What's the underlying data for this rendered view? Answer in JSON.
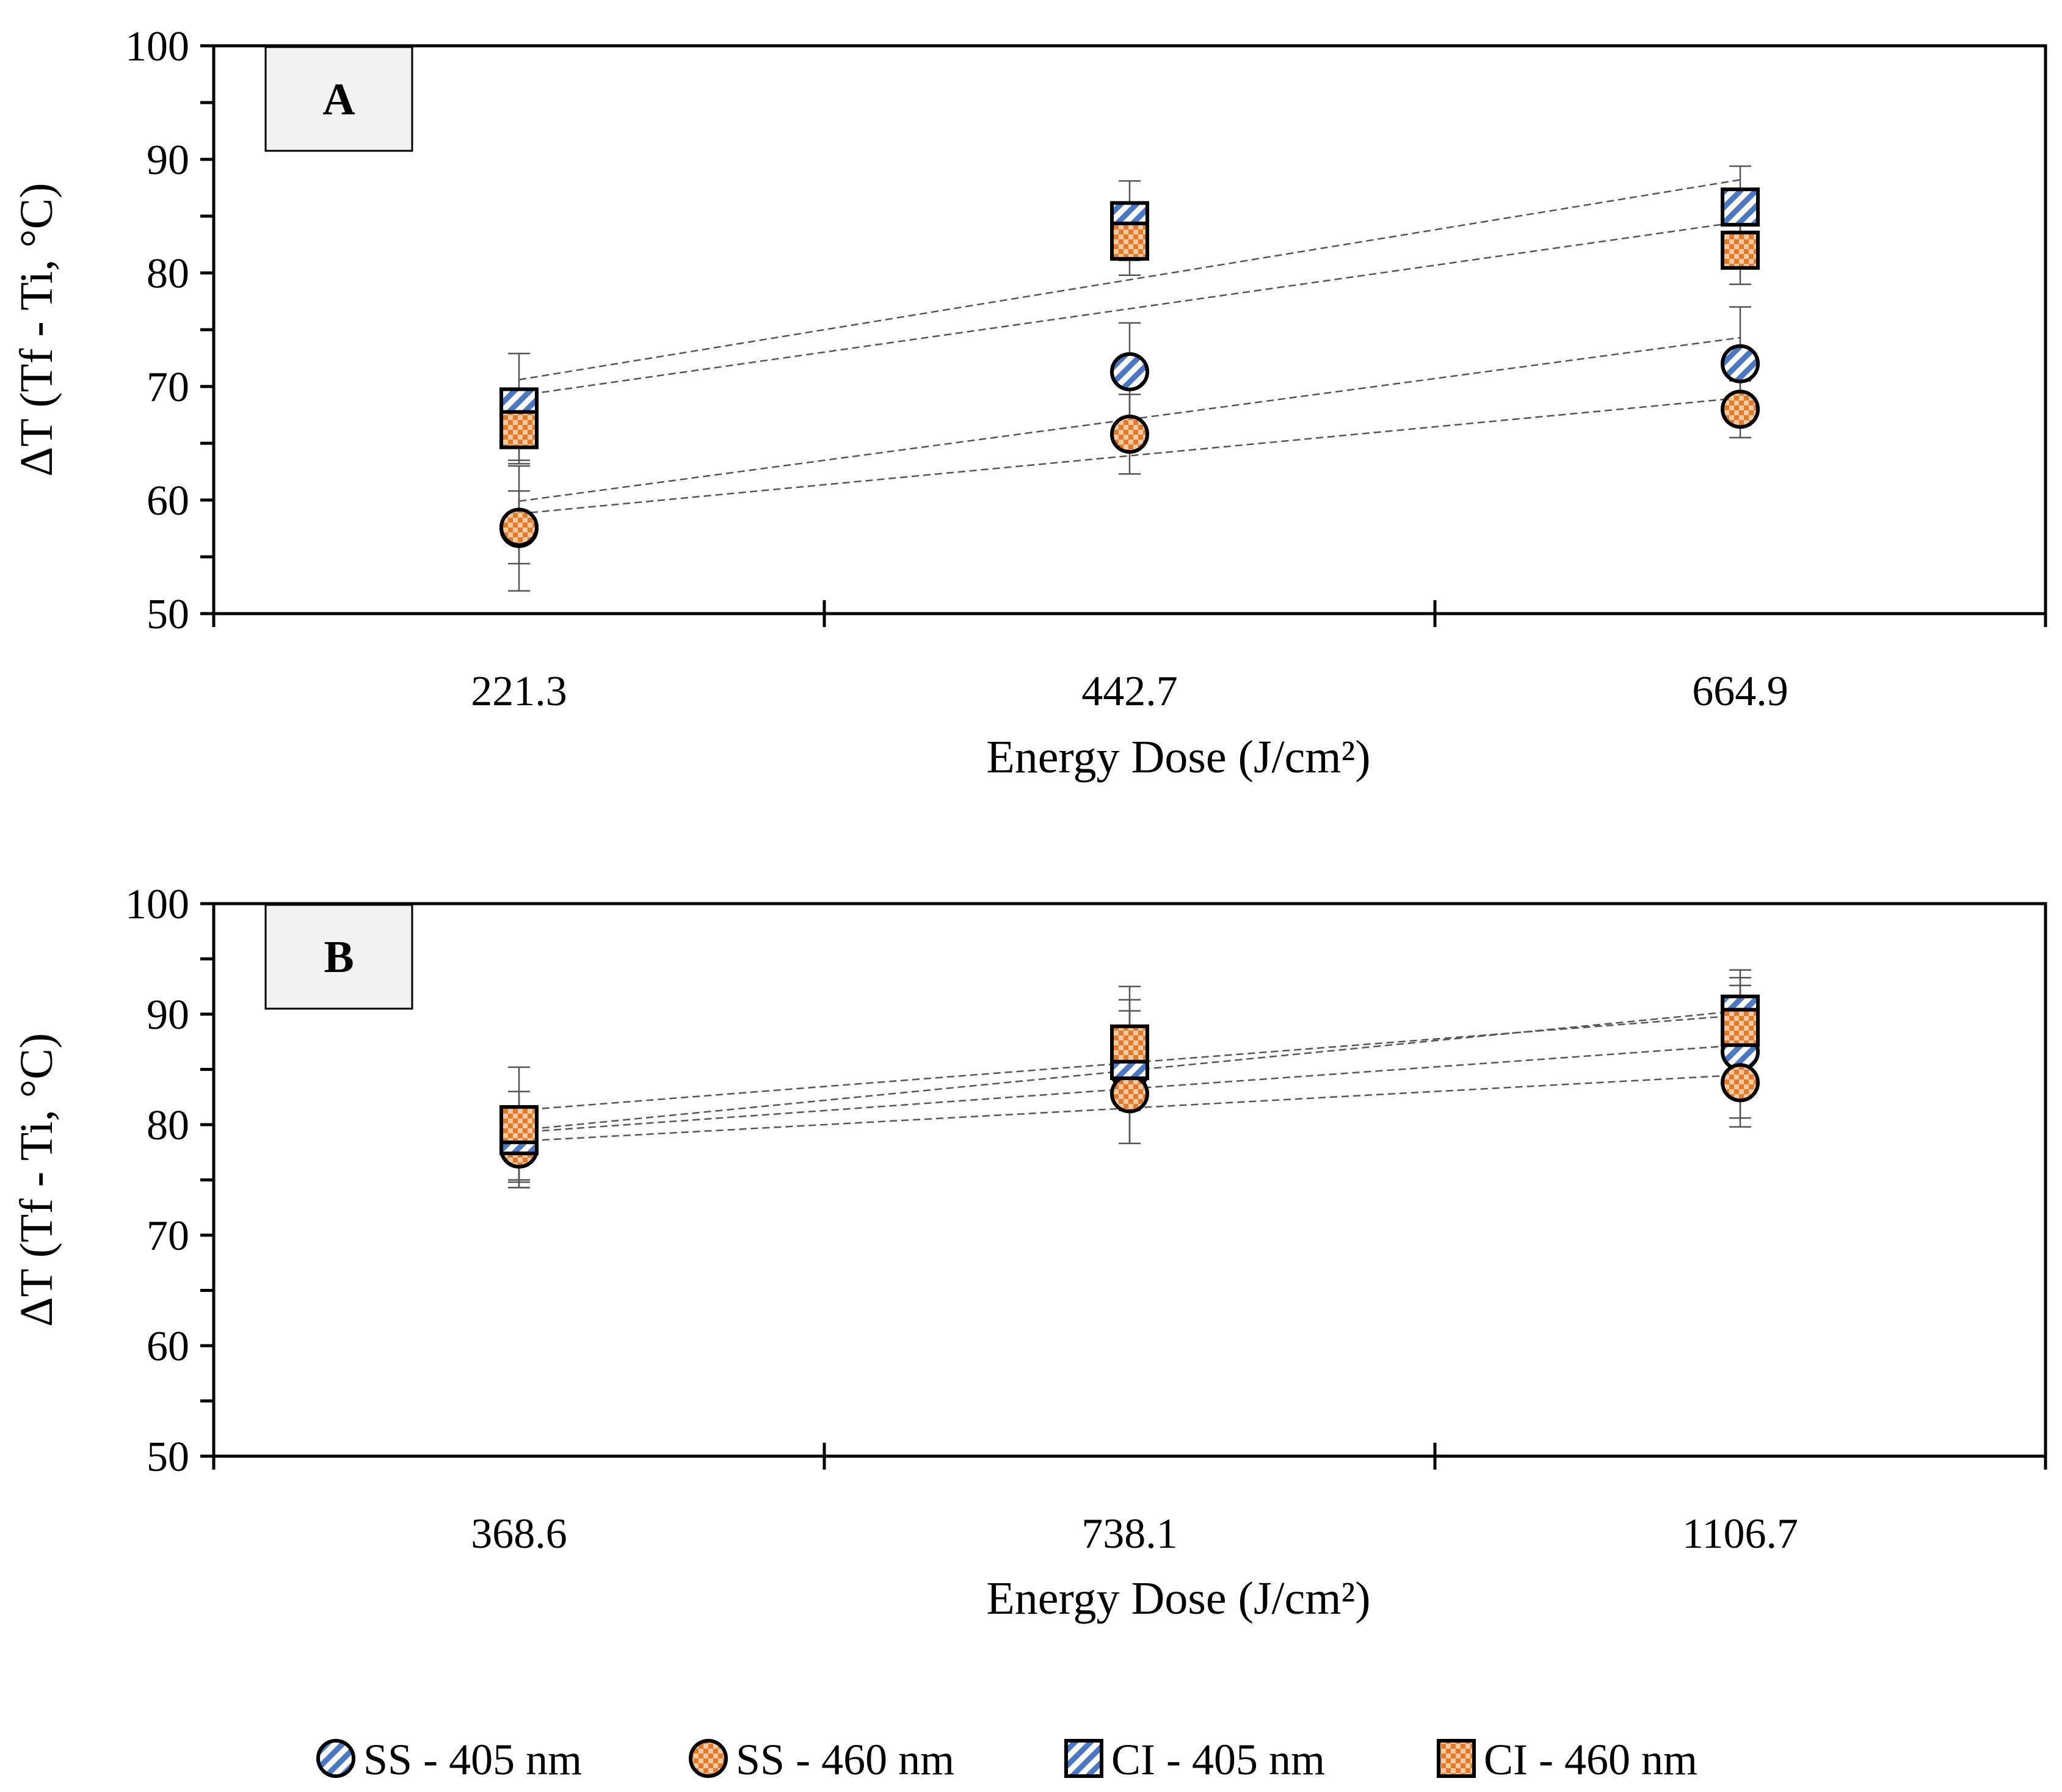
{
  "chart_data": [
    {
      "type": "scatter",
      "panel_label": "A",
      "xlabel": "Energy Dose (J/cm²)",
      "ylabel": "ΔT (Tf - Ti, °C)",
      "ylim": [
        50,
        100
      ],
      "yticks": [
        "50",
        "60",
        "70",
        "80",
        "90",
        "100"
      ],
      "categories": [
        "221.3",
        "442.7",
        "664.9"
      ],
      "trendlines": true,
      "series": [
        {
          "name": "SS - 405 nm",
          "values": [
            57.5,
            71.3,
            72.0
          ],
          "errors": [
            5.5,
            4.3,
            5.0
          ],
          "trend": [
            59.9,
            74.3
          ]
        },
        {
          "name": "SS - 460 nm",
          "values": [
            57.6,
            65.8,
            68.0
          ],
          "errors": [
            3.2,
            3.5,
            2.5
          ],
          "trend": [
            58.8,
            69.0
          ]
        },
        {
          "name": "CI - 405 nm",
          "values": [
            68.2,
            84.6,
            85.8
          ],
          "errors": [
            4.7,
            3.5,
            3.6
          ],
          "trend": [
            70.6,
            88.2
          ]
        },
        {
          "name": "CI - 460 nm",
          "values": [
            66.2,
            82.8,
            82.0
          ],
          "errors": [
            3.0,
            3.0,
            3.0
          ],
          "trend": [
            69.2,
            84.5
          ]
        }
      ]
    },
    {
      "type": "scatter",
      "panel_label": "B",
      "xlabel": "Energy Dose (J/cm²)",
      "ylabel": "ΔT (Tf - Ti, °C)",
      "ylim": [
        50,
        100
      ],
      "yticks": [
        "50",
        "60",
        "70",
        "80",
        "90",
        "100"
      ],
      "categories": [
        "368.6",
        "738.1",
        "1106.7"
      ],
      "trendlines": true,
      "series": [
        {
          "name": "SS - 405 nm",
          "values": [
            77.8,
            84.8,
            86.6
          ],
          "errors": [
            3.5,
            6.5,
            6.0
          ],
          "trend": [
            79.3,
            87.2
          ]
        },
        {
          "name": "SS - 460 nm",
          "values": [
            77.8,
            82.8,
            83.8
          ],
          "errors": [
            3.5,
            4.5,
            4.0
          ],
          "trend": [
            78.5,
            84.5
          ]
        },
        {
          "name": "CI - 405 nm",
          "values": [
            79.0,
            85.8,
            90.0
          ],
          "errors": [
            4.0,
            4.5,
            4.0
          ],
          "trend": [
            79.5,
            90.3
          ]
        },
        {
          "name": "CI - 460 nm",
          "values": [
            80.0,
            87.3,
            88.8
          ],
          "errors": [
            5.2,
            5.2,
            4.5
          ],
          "trend": [
            81.3,
            89.9
          ]
        }
      ]
    }
  ],
  "legend": [
    {
      "label": "SS - 405 nm",
      "marker": "circle",
      "pattern": "blue-stripes"
    },
    {
      "label": "SS - 460 nm",
      "marker": "circle",
      "pattern": "orange-checks"
    },
    {
      "label": "CI - 405 nm",
      "marker": "square",
      "pattern": "blue-stripes"
    },
    {
      "label": "CI - 460 nm",
      "marker": "square",
      "pattern": "orange-checks"
    }
  ],
  "colors": {
    "blue": "#4a78c4",
    "orange": "#e58a3c",
    "axis": "#000000",
    "trend": "#555555",
    "panel_box": "#f2f2f2"
  }
}
